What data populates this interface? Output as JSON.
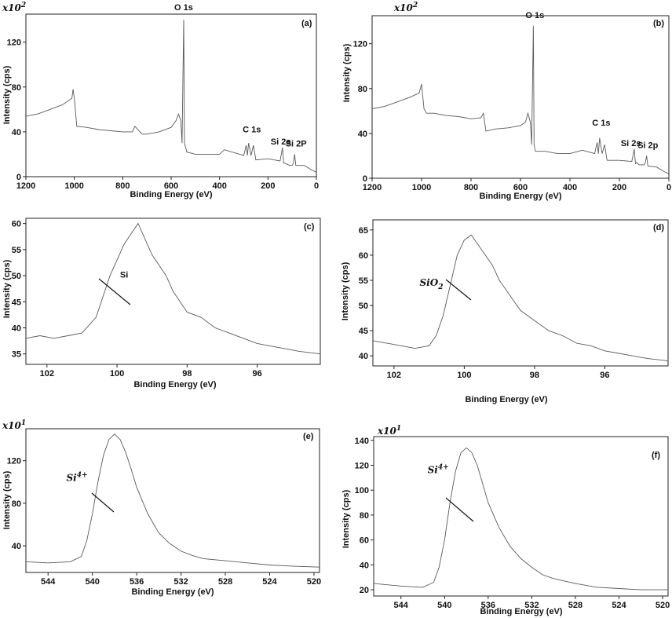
{
  "chart_data": [
    {
      "type": "line",
      "panel_label": "(a)",
      "multiplier": "x10",
      "multiplier_exp": "2",
      "xlabel": "Binding Energy (eV)",
      "ylabel": "Intensity (cps)",
      "xlim": [
        1200,
        0
      ],
      "ylim": [
        0,
        145
      ],
      "xticks": [
        "1200",
        "1000",
        "800",
        "600",
        "400",
        "200",
        "0"
      ],
      "yticks": [
        "0",
        "40",
        "80",
        "120"
      ],
      "series": [
        {
          "x": [
            1200,
            1150,
            1100,
            1050,
            1010,
            1005,
            1000,
            990,
            950,
            900,
            850,
            800,
            760,
            750,
            720,
            700,
            650,
            600,
            580,
            570,
            560,
            555,
            548,
            545,
            540,
            535,
            500,
            450,
            400,
            380,
            300,
            290,
            285,
            280,
            270,
            260,
            250,
            200,
            150,
            140,
            135,
            130,
            120,
            110,
            100,
            95,
            90,
            85,
            50,
            20,
            0
          ],
          "y": [
            54,
            56,
            60,
            64,
            70,
            78,
            70,
            45,
            44,
            42,
            41,
            40,
            40,
            45,
            38,
            38,
            40,
            44,
            50,
            56,
            50,
            30,
            140,
            30,
            26,
            22,
            20,
            20,
            20,
            24,
            19,
            28,
            19,
            30,
            19,
            28,
            15,
            16,
            14,
            26,
            12,
            12,
            11,
            10,
            10,
            12,
            20,
            10,
            10,
            6,
            4
          ]
        }
      ],
      "annotations": [
        {
          "text": "O 1s",
          "x": 548,
          "y": 140
        },
        {
          "text": "C 1s",
          "x": 285,
          "y": 34
        },
        {
          "text": "Si 2s",
          "x": 150,
          "y": 26
        },
        {
          "text": "Si 2P",
          "x": 95,
          "y": 24
        }
      ]
    },
    {
      "type": "line",
      "panel_label": "(b)",
      "multiplier": "x10",
      "multiplier_exp": "2",
      "xlabel": "Binding Energy (eV)",
      "ylabel": "Intensity (cps)",
      "xlim": [
        1200,
        0
      ],
      "ylim": [
        0,
        145
      ],
      "xticks": [
        "1200",
        "1000",
        "800",
        "600",
        "400",
        "200",
        "0"
      ],
      "yticks": [
        "0",
        "40",
        "80",
        "120"
      ],
      "series": [
        {
          "x": [
            1200,
            1150,
            1100,
            1050,
            1010,
            1000,
            990,
            980,
            950,
            900,
            850,
            800,
            760,
            750,
            740,
            720,
            700,
            650,
            600,
            580,
            570,
            560,
            555,
            548,
            545,
            540,
            500,
            450,
            400,
            350,
            300,
            290,
            285,
            280,
            270,
            260,
            250,
            200,
            150,
            140,
            135,
            130,
            120,
            100,
            95,
            90,
            85,
            50,
            20,
            0
          ],
          "y": [
            62,
            64,
            68,
            72,
            76,
            84,
            62,
            58,
            58,
            56,
            55,
            53,
            54,
            58,
            42,
            43,
            44,
            45,
            47,
            50,
            58,
            50,
            30,
            136,
            30,
            24,
            24,
            22,
            22,
            25,
            22,
            32,
            22,
            36,
            22,
            30,
            16,
            16,
            15,
            26,
            13,
            14,
            12,
            12,
            14,
            20,
            11,
            10,
            6,
            4
          ]
        }
      ],
      "annotations": [
        {
          "text": "O 1s",
          "x": 548,
          "y": 136
        },
        {
          "text": "C 1s",
          "x": 285,
          "y": 40
        },
        {
          "text": "Si 2s",
          "x": 150,
          "y": 26
        },
        {
          "text": "Si 2p",
          "x": 95,
          "y": 24
        }
      ]
    },
    {
      "type": "line",
      "panel_label": "(c)",
      "xlabel": "Binding Energy (eV)",
      "ylabel": "Intensity (cps)",
      "xlim": [
        102.6,
        94.2
      ],
      "ylim": [
        33,
        61
      ],
      "xticks": [
        "102",
        "100",
        "98",
        "96"
      ],
      "yticks": [
        "35",
        "40",
        "45",
        "50",
        "55",
        "60"
      ],
      "series": [
        {
          "x": [
            102.6,
            102.2,
            101.8,
            101.4,
            101.0,
            100.6,
            100.4,
            100.2,
            100.0,
            99.8,
            99.6,
            99.4,
            99.2,
            99.0,
            98.8,
            98.6,
            98.4,
            98.2,
            98.0,
            97.6,
            97.2,
            96.8,
            96.4,
            96.0,
            95.6,
            95.2,
            94.8,
            94.2
          ],
          "y": [
            38,
            38.5,
            38,
            38.5,
            39,
            42,
            46,
            50,
            53,
            56,
            58,
            60,
            57,
            54,
            52,
            50,
            47,
            45,
            43,
            42,
            40,
            39,
            38,
            37,
            36.5,
            36,
            35.5,
            35
          ]
        }
      ],
      "annotations": [
        {
          "text": "Si",
          "x": 99.6,
          "y": 49
        }
      ]
    },
    {
      "type": "line",
      "panel_label": "(d)",
      "xlabel": "Binding Energy (eV)",
      "ylabel": "Intensity (cps)",
      "xlim": [
        102.6,
        94.2
      ],
      "ylim": [
        38,
        67
      ],
      "xticks": [
        "102",
        "100",
        "98",
        "96"
      ],
      "yticks": [
        "40",
        "45",
        "50",
        "55",
        "60",
        "65"
      ],
      "series": [
        {
          "x": [
            102.6,
            102.2,
            101.8,
            101.4,
            101.0,
            100.8,
            100.6,
            100.4,
            100.2,
            100.0,
            99.8,
            99.6,
            99.4,
            99.2,
            99.0,
            98.8,
            98.6,
            98.4,
            98.2,
            98.0,
            97.6,
            97.2,
            96.8,
            96.4,
            96.0,
            95.6,
            95.2,
            94.8,
            94.2
          ],
          "y": [
            43,
            42.5,
            42,
            41.5,
            42,
            44,
            48,
            54,
            60,
            63,
            64,
            62,
            60,
            58,
            55,
            53,
            51,
            49,
            48,
            47,
            45,
            44,
            42.5,
            42,
            41,
            40.5,
            40,
            39.5,
            39
          ]
        }
      ],
      "annotations": [
        {
          "text": "SiO2",
          "x": 100.6,
          "y": 53
        }
      ]
    },
    {
      "type": "line",
      "panel_label": "(e)",
      "multiplier": "x10",
      "multiplier_exp": "1",
      "xlabel": "Binding Energy (eV)",
      "ylabel": "Intensity (cps)",
      "xlim": [
        546,
        519.5
      ],
      "ylim": [
        15,
        150
      ],
      "xticks": [
        "544",
        "540",
        "536",
        "532",
        "528",
        "524",
        "520"
      ],
      "yticks": [
        "40",
        "80",
        "120"
      ],
      "series": [
        {
          "x": [
            546,
            544,
            542,
            541,
            540.5,
            540,
            539.5,
            539,
            538.5,
            538,
            537.5,
            537,
            536.5,
            536,
            535,
            534,
            533,
            532,
            531,
            530,
            528,
            526,
            524,
            522,
            519.5
          ],
          "y": [
            25,
            24,
            25,
            30,
            45,
            70,
            100,
            125,
            140,
            145,
            140,
            128,
            112,
            95,
            70,
            52,
            42,
            35,
            31,
            28,
            26,
            24,
            22,
            21,
            20
          ]
        }
      ],
      "annotations": [
        {
          "text": "Si4+",
          "x": 539.8,
          "y": 95
        }
      ]
    },
    {
      "type": "line",
      "panel_label": "(f)",
      "multiplier": "x10",
      "multiplier_exp": "1",
      "xlabel": "Binding Energy (eV)",
      "ylabel": "Intensity (cps)",
      "xlim": [
        546.5,
        519.5
      ],
      "ylim": [
        15,
        143
      ],
      "xticks": [
        "544",
        "540",
        "536",
        "532",
        "528",
        "524",
        "520"
      ],
      "yticks": [
        "20",
        "40",
        "60",
        "80",
        "100",
        "120",
        "140"
      ],
      "series": [
        {
          "x": [
            546.5,
            544,
            542,
            541,
            540.5,
            540,
            539.5,
            539,
            538.5,
            538,
            537.5,
            537,
            536.5,
            536,
            535,
            534,
            533,
            532,
            531,
            530,
            528,
            526,
            524,
            522,
            519.5
          ],
          "y": [
            25,
            23,
            22,
            26,
            38,
            60,
            90,
            115,
            130,
            134,
            130,
            120,
            105,
            90,
            70,
            55,
            45,
            38,
            32,
            29,
            25,
            22,
            21,
            20,
            20
          ]
        }
      ],
      "annotations": [
        {
          "text": "Si4+",
          "x": 539.4,
          "y": 110
        }
      ]
    }
  ]
}
